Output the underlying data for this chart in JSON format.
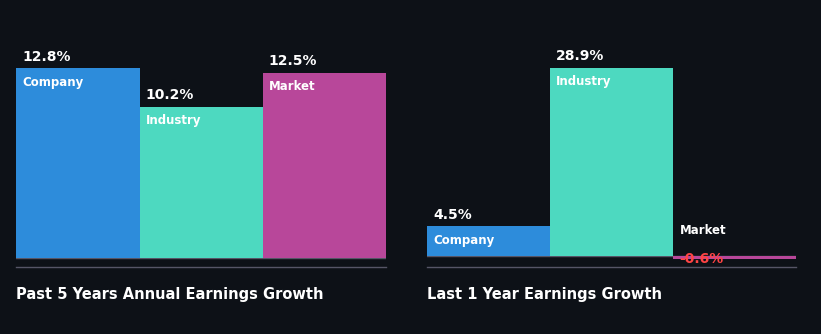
{
  "background_color": "#0d1117",
  "chart1": {
    "title": "Past 5 Years Annual Earnings Growth",
    "bars": [
      {
        "label": "Company",
        "value": 12.8,
        "color": "#2d8cdb"
      },
      {
        "label": "Industry",
        "value": 10.2,
        "color": "#4dd9c0"
      },
      {
        "label": "Market",
        "value": 12.5,
        "color": "#b8479a"
      }
    ]
  },
  "chart2": {
    "title": "Last 1 Year Earnings Growth",
    "bars": [
      {
        "label": "Company",
        "value": 4.5,
        "color": "#2d8cdb"
      },
      {
        "label": "Industry",
        "value": 28.9,
        "color": "#4dd9c0"
      },
      {
        "label": "Market",
        "value": -0.6,
        "color": "#b8479a"
      }
    ]
  },
  "title_color": "#ffffff",
  "value_color": "#ffffff",
  "negative_value_color": "#ff4444",
  "title_fontsize": 10.5,
  "label_fontsize": 8.5,
  "value_fontsize": 10
}
